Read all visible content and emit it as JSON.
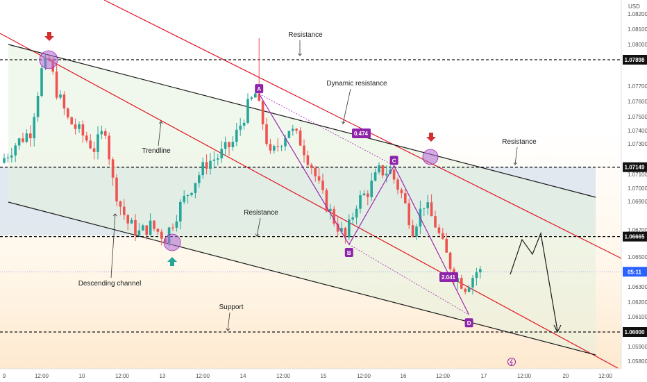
{
  "chart_data": {
    "type": "candlestick",
    "currency": "USD",
    "x_ticks": [
      "9",
      "12:00",
      "10",
      "12:00",
      "13",
      "12:00",
      "14",
      "12:00",
      "15",
      "12:00",
      "16",
      "12:00",
      "17",
      "12:00",
      "20",
      "12:00"
    ],
    "y_ticks": [
      "1.08200",
      "1.08100",
      "1.08000",
      "1.07700",
      "1.07600",
      "1.07500",
      "1.07400",
      "1.07300",
      "1.07100",
      "1.07000",
      "1.06900",
      "1.06700",
      "1.06500",
      "1.06400",
      "1.06300",
      "1.06200",
      "1.06100",
      "1.05900",
      "1.05800"
    ],
    "price_levels": [
      {
        "label": "1.07898",
        "value": 1.07898,
        "style": "dashed",
        "color": "#111111"
      },
      {
        "label": "1.07149",
        "value": 1.07149,
        "style": "dashed",
        "color": "#111111"
      },
      {
        "label": "1.06665",
        "value": 1.06665,
        "style": "dashed",
        "color": "#111111"
      },
      {
        "label": "1.06000",
        "value": 1.06,
        "style": "dashed",
        "color": "#111111"
      }
    ],
    "current_price": {
      "label": "05:11",
      "value": 1.0642,
      "color": "#2962ff"
    },
    "pattern_points": [
      {
        "label": "A",
        "x_index": 68,
        "price": 1.0766
      },
      {
        "label": "B",
        "x_index": 92,
        "price": 1.0661
      },
      {
        "label": "C",
        "x_index": 104,
        "price": 1.0716
      },
      {
        "label": "D",
        "x_index": 124,
        "price": 1.0612
      }
    ],
    "ratios": [
      {
        "label": "0.474",
        "price": 1.0736
      },
      {
        "label": "2.041",
        "price": 1.0636
      }
    ],
    "annotations": [
      "Resistance",
      "Dynamic resistance",
      "Trendline",
      "Resistance",
      "Resistance",
      "Descending channel",
      "Support"
    ],
    "colors": {
      "bull": "#26a69a",
      "bear": "#ef5350",
      "resistance_line": "#e0141e",
      "channel_line": "#1a1a1a",
      "pattern": "#9c27b0",
      "highlight": "#b067d4"
    },
    "candles": []
  }
}
